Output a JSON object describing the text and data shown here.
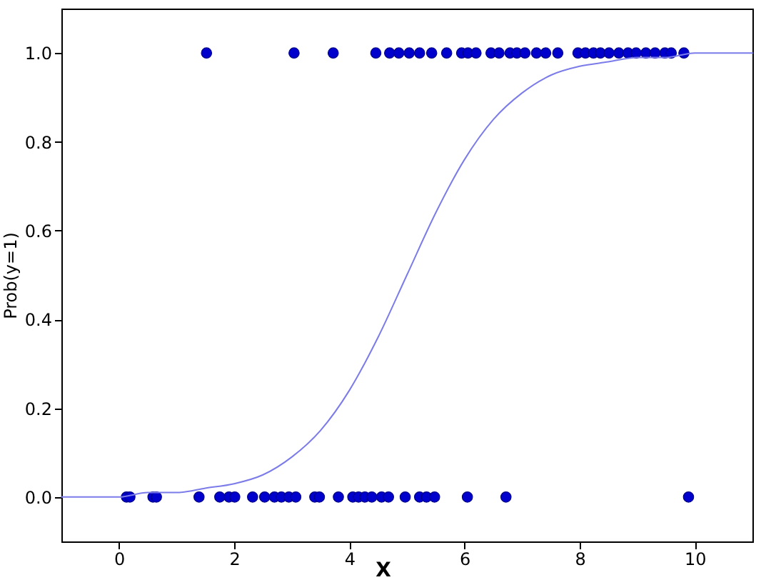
{
  "chart_data": {
    "type": "scatter",
    "xlabel": "X",
    "ylabel": "Prob(y=1)",
    "xlim": [
      -1,
      11
    ],
    "ylim": [
      -0.1,
      1.1
    ],
    "xticks": [
      0,
      2,
      4,
      6,
      8,
      10
    ],
    "yticks": [
      {
        "value": 0,
        "label": "0.0"
      },
      0.2,
      0.4,
      0.6,
      0.8,
      {
        "value": 1,
        "label": "1.0"
      }
    ],
    "grid": false,
    "series": [
      {
        "color": "#0000cc",
        "marker": "circle",
        "x": [
          0.13,
          0.19,
          0.59,
          0.65,
          1.39,
          1.75,
          1.91,
          2.01,
          2.32,
          2.53,
          2.7,
          2.82,
          2.95,
          3.07,
          3.4,
          3.48,
          3.81,
          4.06,
          4.16,
          4.27,
          4.39,
          4.56,
          4.68,
          4.97,
          5.22,
          5.34,
          5.48,
          6.05,
          6.72,
          9.89,
          1.52,
          3.04,
          3.72,
          4.46,
          4.7,
          4.86,
          5.04,
          5.22,
          5.43,
          5.69,
          5.95,
          6.06,
          6.2,
          6.46,
          6.6,
          6.79,
          6.91,
          7.05,
          7.25,
          7.41,
          7.62,
          7.97,
          8.1,
          8.24,
          8.36,
          8.51,
          8.68,
          8.84,
          8.98,
          9.15,
          9.31,
          9.48,
          9.59,
          9.81
        ],
        "values": [
          0,
          0,
          0,
          0,
          0,
          0,
          0,
          0,
          0,
          0,
          0,
          0,
          0,
          0,
          0,
          0,
          0,
          0,
          0,
          0,
          0,
          0,
          0,
          0,
          0,
          0,
          0,
          0,
          0,
          0,
          1,
          1,
          1,
          1,
          1,
          1,
          1,
          1,
          1,
          1,
          1,
          1,
          1,
          1,
          1,
          1,
          1,
          1,
          1,
          1,
          1,
          1,
          1,
          1,
          1,
          1,
          1,
          1,
          1,
          1,
          1,
          1,
          1,
          1
        ]
      },
      {
        "type": "line",
        "color": "#7b7bea",
        "line_style": "solid",
        "x": [
          -1,
          0,
          0.5,
          1,
          1.5,
          2,
          2.5,
          3,
          3.5,
          4,
          4.5,
          5,
          5.5,
          6,
          6.5,
          7,
          7.5,
          8,
          8.5,
          9,
          9.5,
          10,
          11
        ],
        "values": [
          0.0,
          0.0,
          0.01,
          0.01,
          0.02,
          0.03,
          0.05,
          0.09,
          0.15,
          0.24,
          0.36,
          0.5,
          0.64,
          0.76,
          0.85,
          0.91,
          0.95,
          0.97,
          0.98,
          0.99,
          0.99,
          1.0,
          1.0
        ]
      }
    ]
  }
}
